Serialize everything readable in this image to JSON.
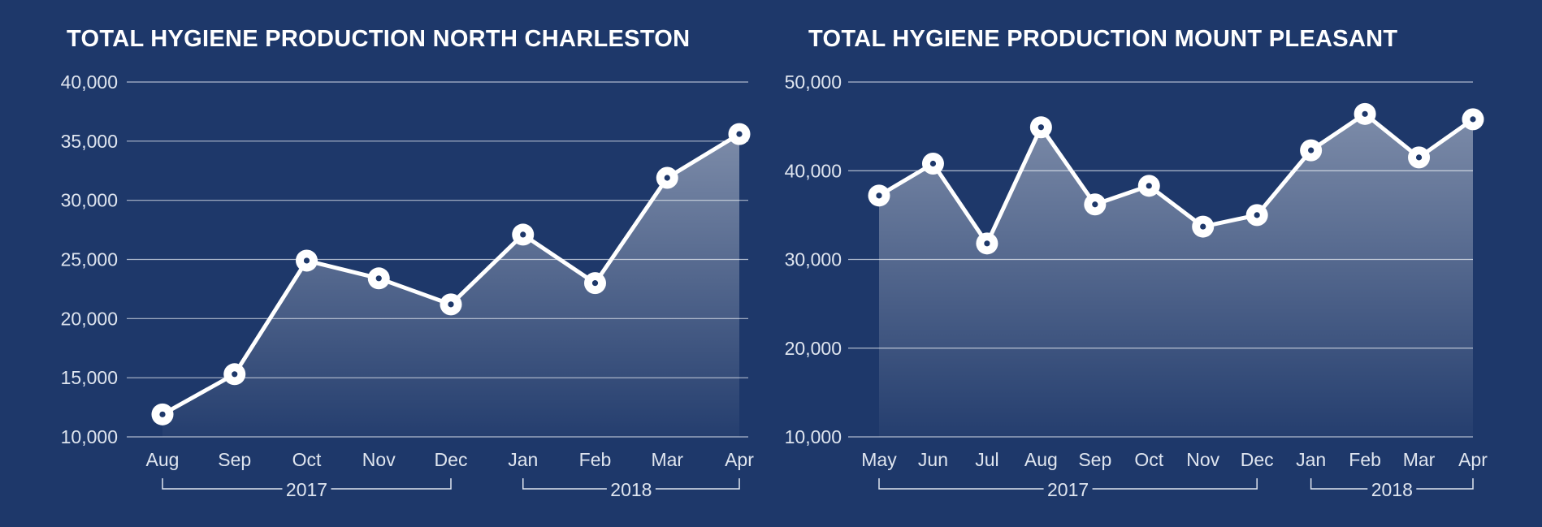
{
  "chart_data": [
    {
      "type": "area",
      "title": "TOTAL HYGIENE PRODUCTION NORTH CHARLESTON",
      "categories": [
        "Aug",
        "Sep",
        "Oct",
        "Nov",
        "Dec",
        "Jan",
        "Feb",
        "Mar",
        "Apr"
      ],
      "values": [
        11900,
        15300,
        24900,
        23400,
        21200,
        27100,
        23000,
        31900,
        35600
      ],
      "ylim": [
        10000,
        40000
      ],
      "yticks": [
        "10,000",
        "15,000",
        "20,000",
        "25,000",
        "30,000",
        "35,000",
        "40,000"
      ],
      "year_groups": [
        {
          "label": "2017",
          "from": "Aug",
          "to": "Dec"
        },
        {
          "label": "2018",
          "from": "Jan",
          "to": "Apr"
        }
      ],
      "grid": true,
      "colors": {
        "line": "#ffffff",
        "fill_top": "#ffffff",
        "grid": "#c8d0de"
      }
    },
    {
      "type": "area",
      "title": "TOTAL HYGIENE PRODUCTION MOUNT PLEASANT",
      "categories": [
        "May",
        "Jun",
        "Jul",
        "Aug",
        "Sep",
        "Oct",
        "Nov",
        "Dec",
        "Jan",
        "Feb",
        "Mar",
        "Apr"
      ],
      "values": [
        37200,
        40800,
        31800,
        44900,
        36200,
        38300,
        33700,
        35000,
        42300,
        46400,
        41500,
        45800
      ],
      "ylim": [
        10000,
        50000
      ],
      "yticks": [
        "10,000",
        "20,000",
        "30,000",
        "40,000",
        "50,000"
      ],
      "year_groups": [
        {
          "label": "2017",
          "from": "May",
          "to": "Dec"
        },
        {
          "label": "2018",
          "from": "Jan",
          "to": "Apr"
        }
      ],
      "grid": true,
      "colors": {
        "line": "#ffffff",
        "fill_top": "#ffffff",
        "grid": "#c8d0de"
      }
    }
  ],
  "background": "#1e386a"
}
